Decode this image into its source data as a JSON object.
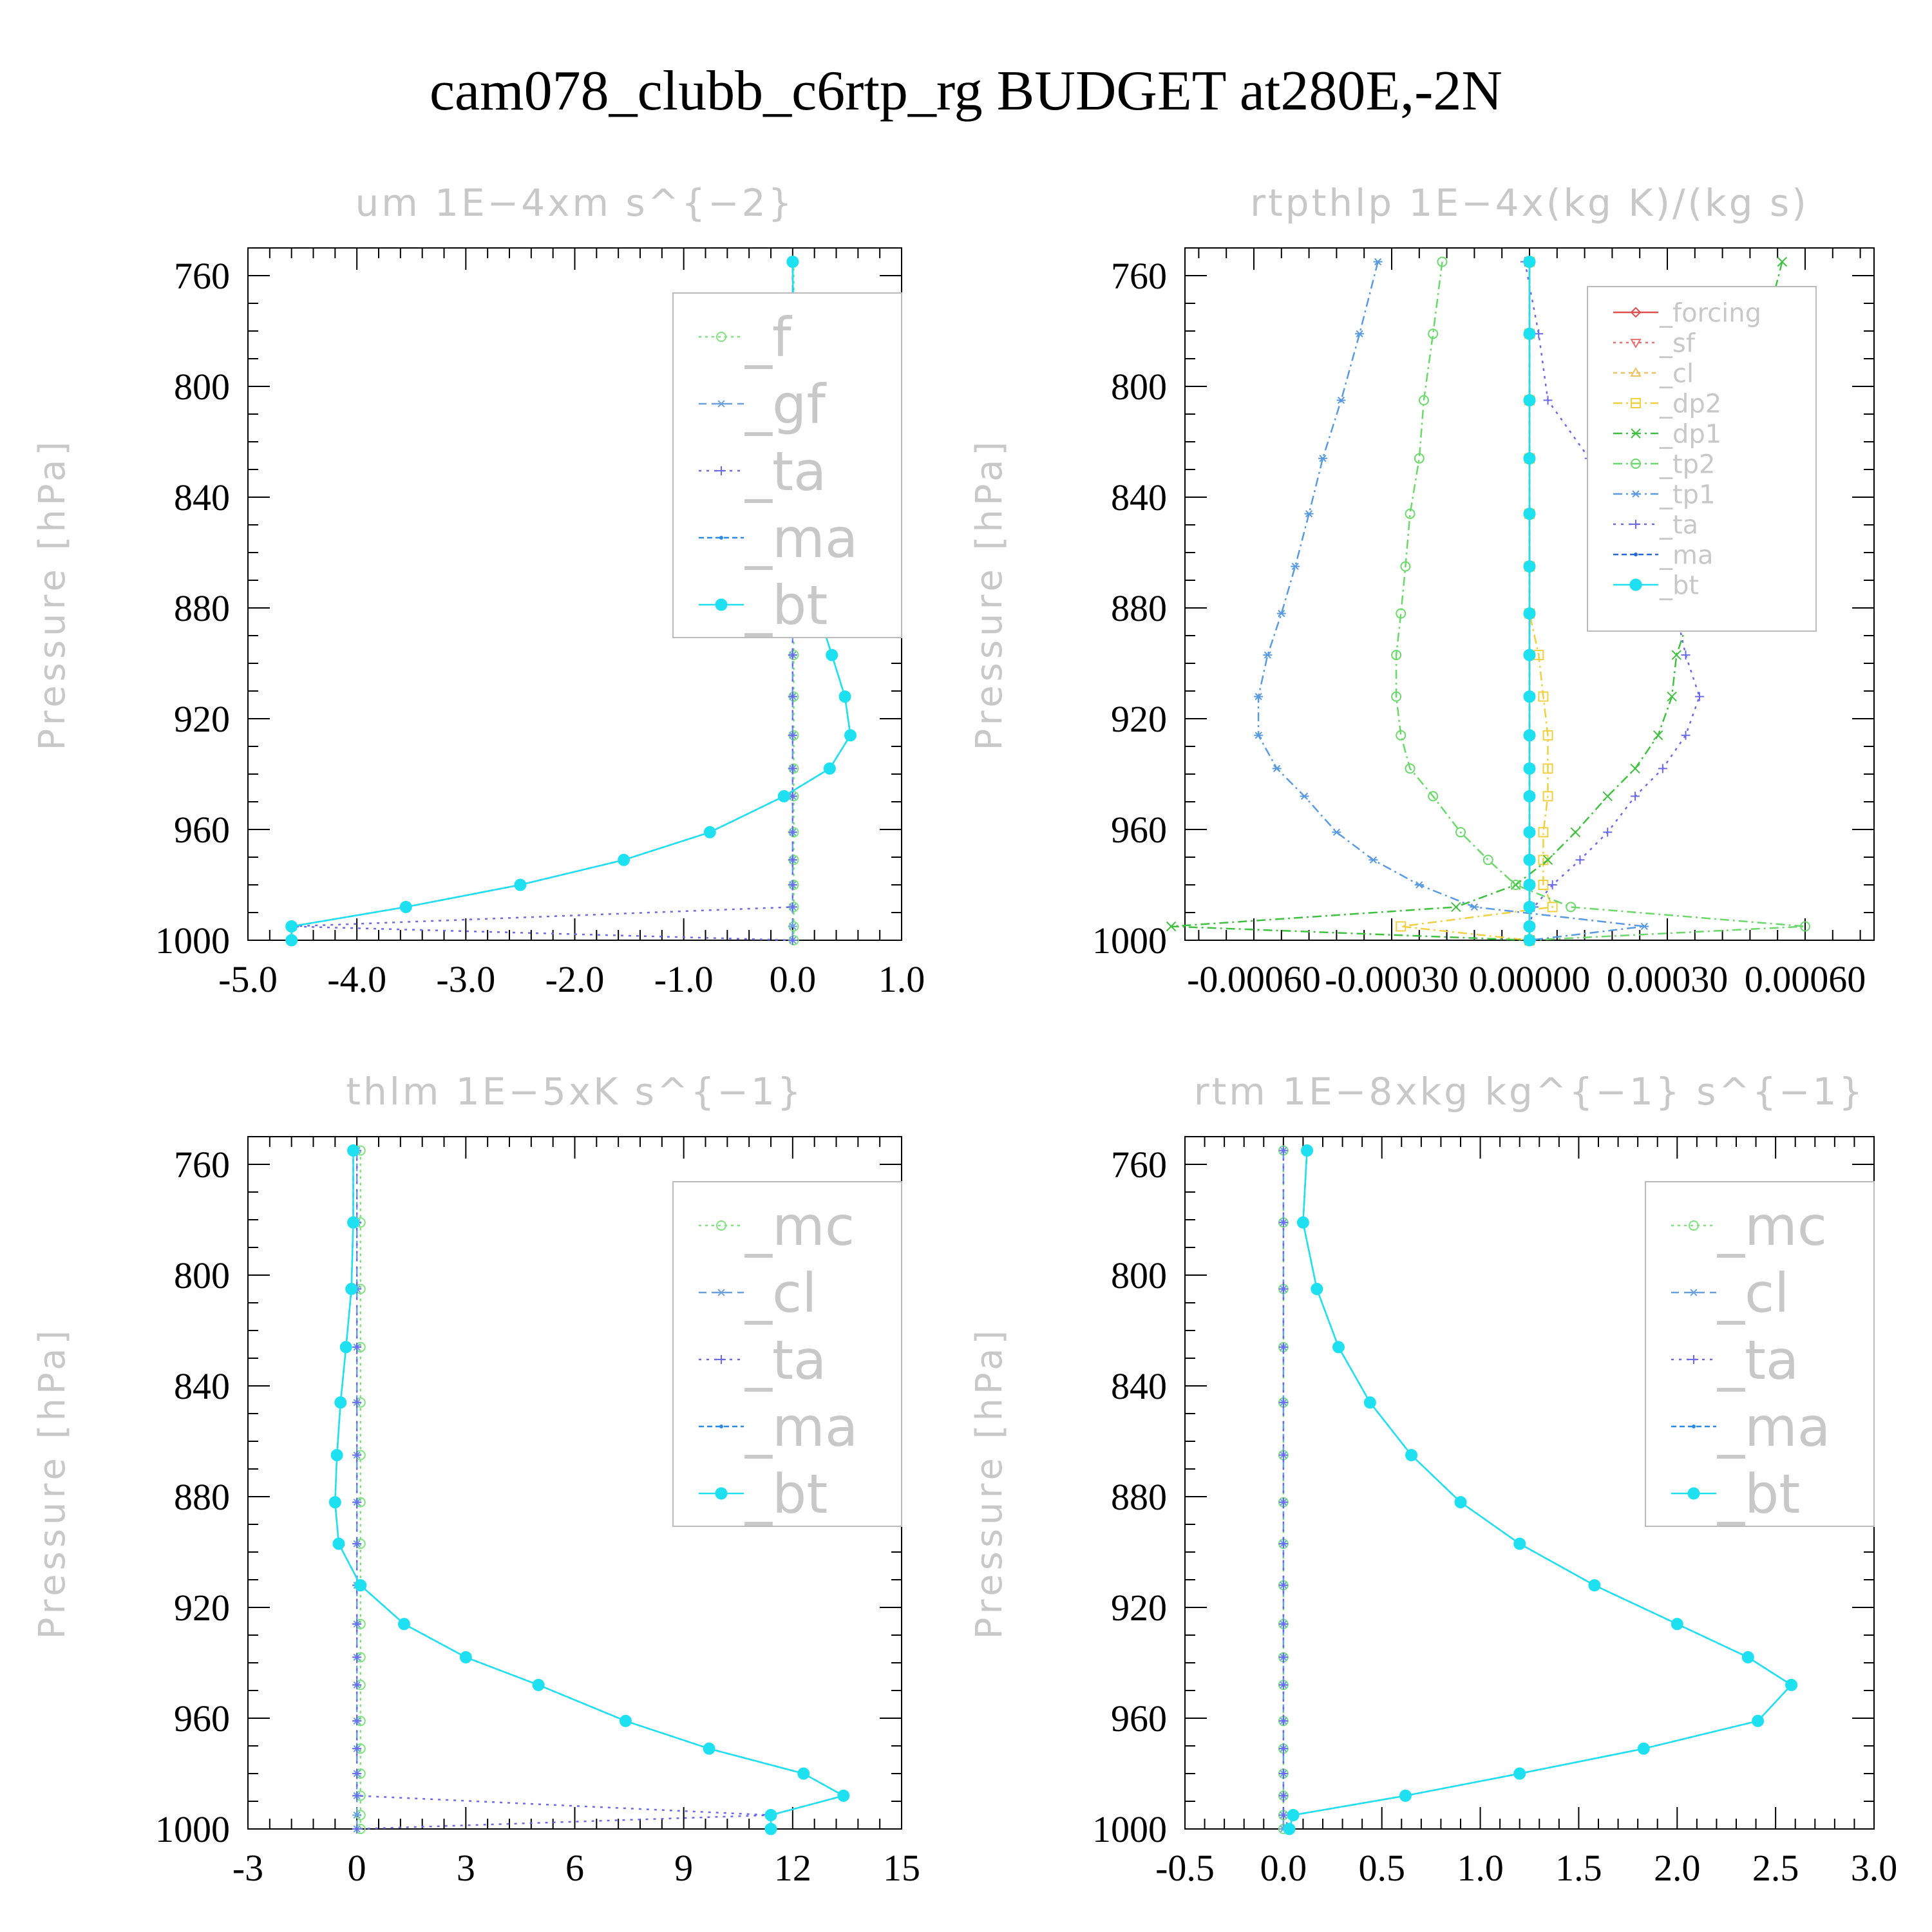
{
  "figure_title": "cam078_clubb_c6rtp_rg  BUDGET at280E,-2N",
  "chart_data": [
    {
      "type": "line",
      "title": "um   1E−4xm s^{−2}",
      "ylabel": "Pressure [hPa]",
      "xlabel": "",
      "xlim": [
        -5.0,
        1.0
      ],
      "ylim": [
        750,
        1000
      ],
      "y_inverted": true,
      "xticks": [
        "-5.0",
        "-4.0",
        "-3.0",
        "-2.0",
        "-1.0",
        "0.0",
        "1.0"
      ],
      "yticks": [
        "760",
        "800",
        "840",
        "880",
        "920",
        "960",
        "1000"
      ],
      "legend_position": "top-right",
      "legend_size": "large",
      "levels": [
        755,
        781,
        805,
        826,
        846,
        865,
        882,
        897,
        912,
        926,
        938,
        948,
        961,
        971,
        980,
        988,
        995,
        1000
      ],
      "series": [
        {
          "name": "_f",
          "color": "#7ee27e",
          "marker": "circle-open",
          "dash": "4 6",
          "values": [
            0.01,
            0.01,
            0.01,
            0.01,
            0.01,
            0.01,
            0.01,
            0.01,
            0.01,
            0.01,
            0.01,
            0.01,
            0.01,
            0.01,
            0.01,
            0.01,
            0.01,
            0.01
          ]
        },
        {
          "name": "_gf",
          "color": "#6aa0e0",
          "marker": "asterisk",
          "dash": "12 8",
          "values": [
            0.0,
            0.0,
            0.0,
            0.0,
            0.0,
            0.0,
            0.0,
            0.0,
            0.0,
            0.0,
            0.0,
            0.0,
            0.0,
            0.0,
            0.0,
            0.0,
            0.0,
            0.0
          ]
        },
        {
          "name": "_ta",
          "color": "#6a6ae8",
          "marker": "plus",
          "dash": "4 8",
          "values": [
            0.0,
            0.0,
            0.0,
            0.0,
            0.0,
            0.0,
            0.0,
            0.0,
            0.0,
            0.0,
            0.0,
            0.0,
            0.0,
            0.0,
            0.0,
            0.0,
            -4.6,
            0.0
          ]
        },
        {
          "name": "_ma",
          "color": "#2a8ae8",
          "marker": "dot",
          "dash": "8 5",
          "values": [
            0.0,
            0.01,
            0.03,
            0.05,
            0.09,
            0.15,
            0.24,
            0.36,
            0.48,
            0.53,
            0.34,
            -0.08,
            -0.76,
            -1.55,
            -2.5,
            -3.55,
            -4.6,
            -4.6
          ]
        },
        {
          "name": "_bt",
          "color": "#1ee0f0",
          "marker": "filled-circle",
          "dash": "",
          "values": [
            0.0,
            0.01,
            0.03,
            0.05,
            0.09,
            0.15,
            0.24,
            0.36,
            0.48,
            0.53,
            0.34,
            -0.08,
            -0.76,
            -1.55,
            -2.5,
            -3.55,
            -4.6,
            -4.6
          ]
        }
      ]
    },
    {
      "type": "line",
      "title": "rtpthlp   1E−4x(kg K)/(kg s)",
      "ylabel": "Pressure [hPa]",
      "xlabel": "",
      "xlim": [
        -0.00075,
        0.00075
      ],
      "ylim": [
        750,
        1000
      ],
      "y_inverted": true,
      "xticks": [
        "-0.00060",
        "-0.00030",
        "0.00000",
        "0.00030",
        "0.00060"
      ],
      "xtick_values": [
        -0.0006,
        -0.0003,
        0.0,
        0.0003,
        0.0006
      ],
      "yticks": [
        "760",
        "800",
        "840",
        "880",
        "920",
        "960",
        "1000"
      ],
      "legend_position": "top-right",
      "legend_size": "small",
      "levels": [
        755,
        781,
        805,
        826,
        846,
        865,
        882,
        897,
        912,
        926,
        938,
        948,
        961,
        971,
        980,
        988,
        995,
        1000
      ],
      "series": [
        {
          "name": "_forcing",
          "color": "#e05050",
          "marker": "diamond-open",
          "dash": "",
          "values": [
            0,
            0,
            0,
            0,
            0,
            0,
            0,
            0,
            0,
            0,
            0,
            0,
            0,
            0,
            0,
            0,
            0,
            0
          ]
        },
        {
          "name": "_sf",
          "color": "#e87070",
          "marker": "triangle-down",
          "dash": "4 6",
          "values": [
            0,
            0,
            0,
            0,
            0,
            0,
            0,
            0,
            0,
            0,
            0,
            0,
            0,
            0,
            0,
            0,
            0,
            0
          ]
        },
        {
          "name": "_cl",
          "color": "#f0c060",
          "marker": "triangle-up",
          "dash": "6 6",
          "values": [
            0,
            0,
            0,
            0,
            0,
            0,
            0,
            0,
            0,
            0,
            0,
            0,
            0,
            0,
            0,
            0,
            0,
            0
          ]
        },
        {
          "name": "_dp2",
          "color": "#f0d040",
          "marker": "square-open",
          "dash": "14 6 3 6",
          "values": [
            0,
            0,
            0,
            0,
            0,
            0,
            0,
            2e-05,
            3e-05,
            4e-05,
            4e-05,
            4e-05,
            3e-05,
            3e-05,
            3e-05,
            5e-05,
            -0.00028,
            0
          ]
        },
        {
          "name": "_dp1",
          "color": "#40c040",
          "marker": "cross",
          "dash": "14 6 3 6",
          "values": [
            0.00055,
            0.00051,
            0.00047,
            0.00044,
            0.0004,
            0.00037,
            0.00035,
            0.00032,
            0.00031,
            0.00028,
            0.00023,
            0.00017,
            0.0001,
            4e-05,
            -3e-05,
            -0.00016,
            -0.00078,
            0
          ]
        },
        {
          "name": "_tp2",
          "color": "#6ad86a",
          "marker": "circle-open",
          "dash": "14 6 3 6",
          "values": [
            -0.00019,
            -0.00021,
            -0.00023,
            -0.00024,
            -0.00026,
            -0.00027,
            -0.00028,
            -0.00029,
            -0.00029,
            -0.00028,
            -0.00026,
            -0.00021,
            -0.00015,
            -9e-05,
            -3e-05,
            9e-05,
            0.0006,
            0
          ]
        },
        {
          "name": "_tp1",
          "color": "#5a9ae0",
          "marker": "asterisk",
          "dash": "14 6 3 6",
          "values": [
            -0.00033,
            -0.00037,
            -0.00041,
            -0.00045,
            -0.00048,
            -0.00051,
            -0.00054,
            -0.00057,
            -0.00059,
            -0.00059,
            -0.00055,
            -0.00049,
            -0.00042,
            -0.00034,
            -0.00024,
            -0.00012,
            0.00025,
            0
          ]
        },
        {
          "name": "_ta",
          "color": "#6a6ae8",
          "marker": "plus",
          "dash": "4 8",
          "values": [
            -1e-05,
            2e-05,
            4e-05,
            0.00013,
            0.00021,
            0.00027,
            0.00032,
            0.00034,
            0.00037,
            0.00034,
            0.00029,
            0.00023,
            0.00017,
            0.00011,
            5e-05,
            1e-05,
            0,
            0
          ]
        },
        {
          "name": "_ma",
          "color": "#2a6ad8",
          "marker": "dot",
          "dash": "8 5",
          "values": [
            0,
            0,
            0,
            0,
            0,
            0,
            0,
            0,
            0,
            0,
            0,
            0,
            0,
            0,
            0,
            0,
            0,
            0
          ]
        },
        {
          "name": "_bt",
          "color": "#1ee0f0",
          "marker": "filled-circle",
          "dash": "",
          "values": [
            0,
            0,
            0,
            0,
            0,
            0,
            0,
            0,
            0,
            0,
            0,
            0,
            0,
            0,
            0,
            0,
            0,
            0
          ]
        }
      ]
    },
    {
      "type": "line",
      "title": "thlm   1E−5xK s^{−1}",
      "ylabel": "Pressure [hPa]",
      "xlabel": "",
      "xlim": [
        -3,
        15
      ],
      "ylim": [
        750,
        1000
      ],
      "y_inverted": true,
      "xticks": [
        "-3",
        "0",
        "3",
        "6",
        "9",
        "12",
        "15"
      ],
      "yticks": [
        "760",
        "800",
        "840",
        "880",
        "920",
        "960",
        "1000"
      ],
      "legend_position": "top-right",
      "legend_size": "large",
      "levels": [
        755,
        781,
        805,
        826,
        846,
        865,
        882,
        897,
        912,
        926,
        938,
        948,
        961,
        971,
        980,
        988,
        995,
        1000
      ],
      "series": [
        {
          "name": "_mc",
          "color": "#7ee27e",
          "marker": "circle-open",
          "dash": "4 6",
          "values": [
            0.1,
            0.1,
            0.1,
            0.1,
            0.1,
            0.1,
            0.1,
            0.1,
            0.1,
            0.1,
            0.1,
            0.1,
            0.1,
            0.1,
            0.1,
            0.1,
            0.1,
            0.1
          ]
        },
        {
          "name": "_cl",
          "color": "#6aa0e0",
          "marker": "asterisk",
          "dash": "12 8",
          "values": [
            0,
            0,
            0,
            0,
            0,
            0,
            0,
            0,
            0,
            0,
            0,
            0,
            0,
            0,
            0,
            0,
            0,
            0
          ]
        },
        {
          "name": "_ta",
          "color": "#6a6ae8",
          "marker": "plus",
          "dash": "4 8",
          "values": [
            0,
            0,
            0,
            0,
            0,
            0,
            0,
            0,
            0,
            0,
            0,
            0,
            0,
            0,
            0,
            0,
            11.4,
            0
          ]
        },
        {
          "name": "_ma",
          "color": "#2a8ae8",
          "marker": "dot",
          "dash": "8 5",
          "values": [
            -0.1,
            -0.1,
            -0.15,
            -0.3,
            -0.45,
            -0.55,
            -0.6,
            -0.5,
            0.1,
            1.3,
            3.0,
            5.0,
            7.4,
            9.7,
            12.3,
            13.4,
            11.4,
            11.4
          ]
        },
        {
          "name": "_bt",
          "color": "#1ee0f0",
          "marker": "filled-circle",
          "dash": "",
          "values": [
            -0.1,
            -0.1,
            -0.15,
            -0.3,
            -0.45,
            -0.55,
            -0.6,
            -0.5,
            0.1,
            1.3,
            3.0,
            5.0,
            7.4,
            9.7,
            12.3,
            13.4,
            11.4,
            11.4
          ]
        }
      ]
    },
    {
      "type": "line",
      "title": "rtm   1E−8xkg kg^{−1} s^{−1}",
      "ylabel": "Pressure [hPa]",
      "xlabel": "",
      "xlim": [
        -0.5,
        3.0
      ],
      "ylim": [
        750,
        1000
      ],
      "y_inverted": true,
      "xticks": [
        "-0.5",
        "0.0",
        "0.5",
        "1.0",
        "1.5",
        "2.0",
        "2.5",
        "3.0"
      ],
      "yticks": [
        "760",
        "800",
        "840",
        "880",
        "920",
        "960",
        "1000"
      ],
      "legend_position": "top-right",
      "legend_size": "large",
      "levels": [
        755,
        781,
        805,
        826,
        846,
        865,
        882,
        897,
        912,
        926,
        938,
        948,
        961,
        971,
        980,
        988,
        995,
        1000
      ],
      "series": [
        {
          "name": "_mc",
          "color": "#7ee27e",
          "marker": "circle-open",
          "dash": "4 6",
          "values": [
            0,
            0,
            0,
            0,
            0,
            0,
            0,
            0,
            0,
            0,
            0,
            0,
            0,
            0,
            0,
            0,
            0,
            0
          ]
        },
        {
          "name": "_cl",
          "color": "#6aa0e0",
          "marker": "asterisk",
          "dash": "12 8",
          "values": [
            0,
            0,
            0,
            0,
            0,
            0,
            0,
            0,
            0,
            0,
            0,
            0,
            0,
            0,
            0,
            0,
            0,
            0
          ]
        },
        {
          "name": "_ta",
          "color": "#6a6ae8",
          "marker": "plus",
          "dash": "4 8",
          "values": [
            0,
            0,
            0,
            0,
            0,
            0,
            0,
            0,
            0,
            0,
            0,
            0,
            0,
            0,
            0,
            0,
            0,
            0.03
          ]
        },
        {
          "name": "_ma",
          "color": "#2a8ae8",
          "marker": "dot",
          "dash": "8 5",
          "values": [
            0.12,
            0.1,
            0.17,
            0.28,
            0.44,
            0.65,
            0.9,
            1.2,
            1.58,
            2.0,
            2.36,
            2.58,
            2.41,
            1.83,
            1.2,
            0.62,
            0.05,
            0.03
          ]
        },
        {
          "name": "_bt",
          "color": "#1ee0f0",
          "marker": "filled-circle",
          "dash": "",
          "values": [
            0.12,
            0.1,
            0.17,
            0.28,
            0.44,
            0.65,
            0.9,
            1.2,
            1.58,
            2.0,
            2.36,
            2.58,
            2.41,
            1.83,
            1.2,
            0.62,
            0.05,
            0.03
          ]
        }
      ]
    }
  ]
}
